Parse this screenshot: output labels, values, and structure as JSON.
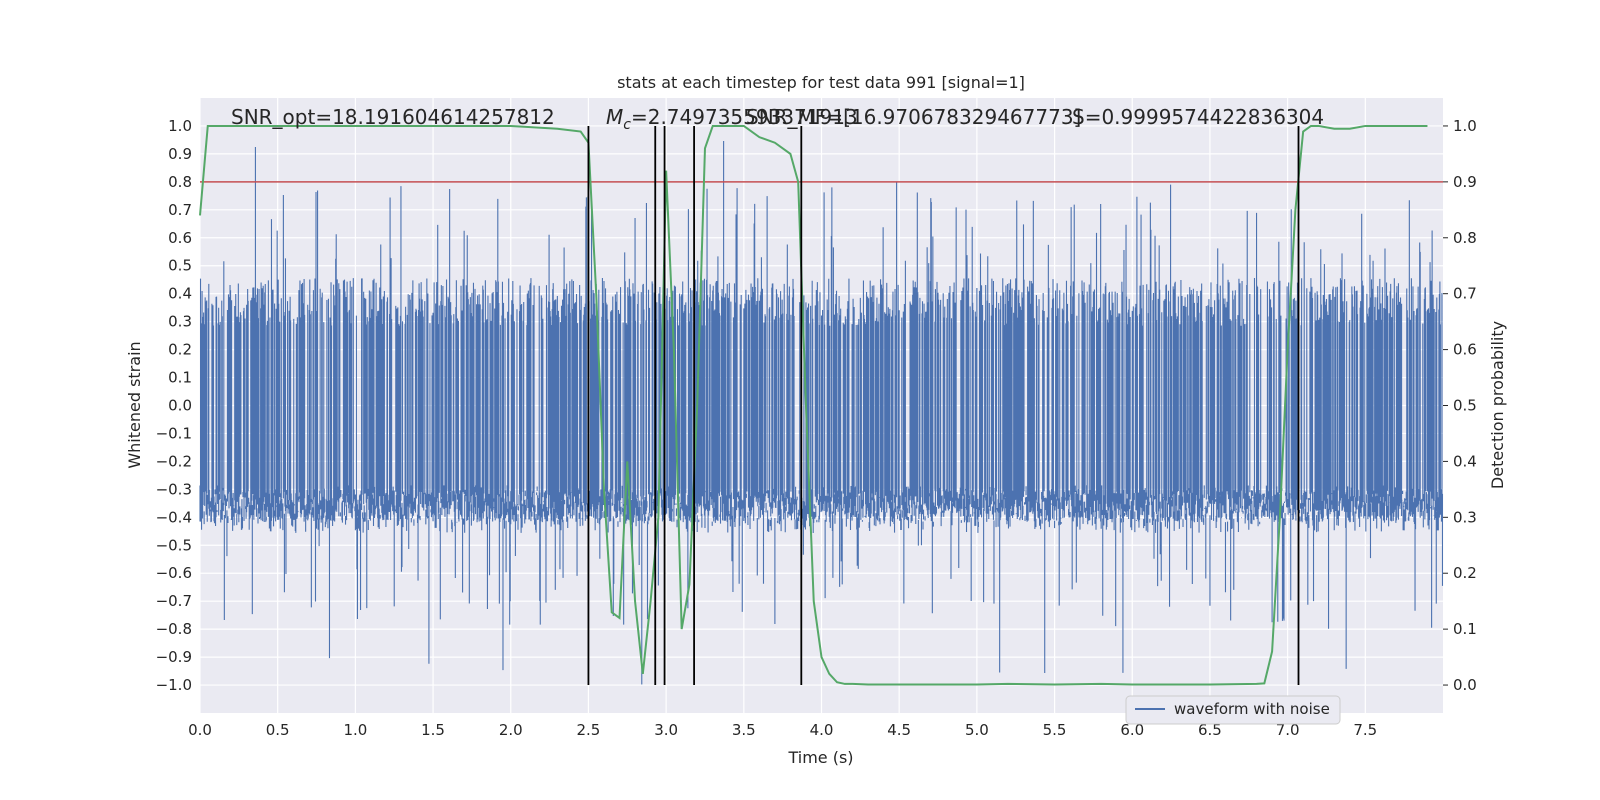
{
  "chart_data": {
    "type": "line",
    "title": "stats at each timestep for test data 991 [signal=1]",
    "xlabel": "Time (s)",
    "ylabel": "Whitened strain",
    "ylabel_right": "Detection probability",
    "xlim": [
      0.0,
      8.0
    ],
    "ylim": [
      -1.1,
      1.1
    ],
    "ylim_right": [
      -0.05,
      1.05
    ],
    "x_ticks": [
      0.0,
      0.5,
      1.0,
      1.5,
      2.0,
      2.5,
      3.0,
      3.5,
      4.0,
      4.5,
      5.0,
      5.5,
      6.0,
      6.5,
      7.0,
      7.5
    ],
    "x_tick_labels": [
      "0.0",
      "0.5",
      "1.0",
      "1.5",
      "2.0",
      "2.5",
      "3.0",
      "3.5",
      "4.0",
      "4.5",
      "5.0",
      "5.5",
      "6.0",
      "6.5",
      "7.0",
      "7.5"
    ],
    "y_ticks": [
      -1.0,
      -0.9,
      -0.8,
      -0.7,
      -0.6,
      -0.5,
      -0.4,
      -0.3,
      -0.2,
      -0.1,
      0.0,
      0.1,
      0.2,
      0.3,
      0.4,
      0.5,
      0.6,
      0.7,
      0.8,
      0.9,
      1.0
    ],
    "y_tick_labels": [
      "−1.0",
      "−0.9",
      "−0.8",
      "−0.7",
      "−0.6",
      "−0.5",
      "−0.4",
      "−0.3",
      "−0.2",
      "−0.1",
      "0.0",
      "0.1",
      "0.2",
      "0.3",
      "0.4",
      "0.5",
      "0.6",
      "0.7",
      "0.8",
      "0.9",
      "1.0"
    ],
    "y_right_ticks": [
      0.0,
      0.1,
      0.2,
      0.3,
      0.4,
      0.5,
      0.6,
      0.7,
      0.8,
      0.9,
      1.0
    ],
    "y_right_tick_labels": [
      "0.0",
      "0.1",
      "0.2",
      "0.3",
      "0.4",
      "0.5",
      "0.6",
      "0.7",
      "0.8",
      "0.9",
      "1.0"
    ],
    "grid": true,
    "legend": {
      "placement": "bottom-center-right",
      "entries": [
        "waveform with noise"
      ]
    },
    "annotations": {
      "snr_opt": "SNR_opt=18.191604614257812",
      "mc_symbol": "M",
      "mc_sub": "c",
      "mc_value": "=2.749735593371913",
      "snr_mf": "SNR_MF=[16.970678329467773]",
      "s_value": "S=0.9999574422836304"
    },
    "threshold": {
      "value": 0.8,
      "color": "#c44e52"
    },
    "vertical_markers": [
      2.5,
      2.93,
      2.99,
      3.18,
      3.87,
      7.07
    ],
    "series": [
      {
        "name": "waveform with noise",
        "color": "#4c72b0",
        "envelope_description_points": {
          "x": [
            0.0,
            8.0
          ],
          "typical_amplitude": 0.38,
          "peak_max": 1.0,
          "peak_min": -1.0
        }
      },
      {
        "name": "",
        "axis": "right",
        "color": "#55a868",
        "x": [
          0.0,
          0.05,
          0.1,
          0.5,
          1.0,
          1.5,
          2.0,
          2.3,
          2.45,
          2.5,
          2.55,
          2.6,
          2.65,
          2.7,
          2.75,
          2.8,
          2.85,
          2.9,
          2.95,
          3.0,
          3.05,
          3.1,
          3.15,
          3.2,
          3.25,
          3.3,
          3.4,
          3.5,
          3.6,
          3.7,
          3.8,
          3.85,
          3.9,
          3.95,
          4.0,
          4.05,
          4.1,
          4.15,
          4.2,
          4.3,
          4.5,
          5.0,
          5.2,
          5.5,
          5.8,
          6.0,
          6.2,
          6.5,
          6.8,
          6.85,
          6.9,
          6.95,
          7.0,
          7.05,
          7.1,
          7.15,
          7.2,
          7.3,
          7.4,
          7.5,
          7.7,
          7.9
        ],
        "y": [
          0.84,
          1.0,
          1.0,
          1.0,
          1.0,
          1.0,
          1.0,
          0.995,
          0.99,
          0.97,
          0.7,
          0.35,
          0.13,
          0.12,
          0.4,
          0.15,
          0.02,
          0.15,
          0.3,
          0.92,
          0.6,
          0.1,
          0.18,
          0.5,
          0.96,
          1.0,
          1.0,
          1.0,
          0.98,
          0.97,
          0.95,
          0.9,
          0.5,
          0.15,
          0.05,
          0.02,
          0.005,
          0.002,
          0.002,
          0.001,
          0.001,
          0.001,
          0.002,
          0.001,
          0.002,
          0.001,
          0.001,
          0.001,
          0.002,
          0.003,
          0.06,
          0.3,
          0.6,
          0.85,
          0.99,
          1.0,
          1.0,
          0.995,
          0.995,
          1.0,
          1.0,
          1.0
        ]
      }
    ]
  }
}
